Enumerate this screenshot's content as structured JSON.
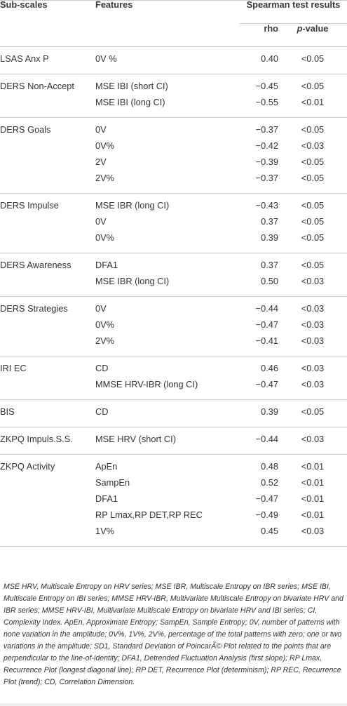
{
  "header": {
    "subscales": "Sub-scales",
    "features": "Features",
    "results": "Spearman test results",
    "rho": "rho",
    "pvalue_italic": "p",
    "pvalue_rest": "-value"
  },
  "groups": [
    {
      "scale": "LSAS Anx P",
      "rows": [
        {
          "feature": "0V %",
          "rho": "0.40",
          "p": "<0.05"
        }
      ]
    },
    {
      "scale": "DERS Non-Accept",
      "rows": [
        {
          "feature": "MSE IBI (short CI)",
          "rho": "−0.45",
          "p": "<0.05"
        },
        {
          "feature": "MSE IBI (long CI)",
          "rho": "−0.55",
          "p": "<0.01"
        }
      ]
    },
    {
      "scale": "DERS Goals",
      "rows": [
        {
          "feature": "0V",
          "rho": "−0.37",
          "p": "<0.05"
        },
        {
          "feature": "0V%",
          "rho": "−0.42",
          "p": "<0.03"
        },
        {
          "feature": "2V",
          "rho": "−0.39",
          "p": "<0.05"
        },
        {
          "feature": "2V%",
          "rho": "−0.37",
          "p": "<0.05"
        }
      ]
    },
    {
      "scale": "DERS Impulse",
      "rows": [
        {
          "feature": "MSE IBR (long CI)",
          "rho": "−0.43",
          "p": "<0.05"
        },
        {
          "feature": "0V",
          "rho": "0.37",
          "p": "<0.05"
        },
        {
          "feature": "0V%",
          "rho": "0.39",
          "p": "<0.05"
        }
      ]
    },
    {
      "scale": "DERS Awareness",
      "rows": [
        {
          "feature": "DFA1",
          "rho": "0.37",
          "p": "<0.05"
        },
        {
          "feature": "MSE IBR (long CI)",
          "rho": "0.50",
          "p": "<0.03"
        }
      ]
    },
    {
      "scale": "DERS Strategies",
      "rows": [
        {
          "feature": "0V",
          "rho": "−0.44",
          "p": "<0.03"
        },
        {
          "feature": "0V%",
          "rho": "−0.47",
          "p": "<0.03"
        },
        {
          "feature": "2V%",
          "rho": "−0.41",
          "p": "<0.03"
        }
      ]
    },
    {
      "scale": "IRI EC",
      "rows": [
        {
          "feature": "CD",
          "rho": "0.46",
          "p": "<0.03"
        },
        {
          "feature": "MMSE HRV-IBR (long CI)",
          "rho": "−0.47",
          "p": "<0.03"
        }
      ]
    },
    {
      "scale": "BIS",
      "rows": [
        {
          "feature": "CD",
          "rho": "0.39",
          "p": "<0.05"
        }
      ]
    },
    {
      "scale": "ZKPQ Impuls.S.S.",
      "rows": [
        {
          "feature": "MSE HRV (short CI)",
          "rho": "−0.44",
          "p": "<0.03"
        }
      ]
    },
    {
      "scale": "ZKPQ Activity",
      "rows": [
        {
          "feature": "ApEn",
          "rho": "0.48",
          "p": "<0.01"
        },
        {
          "feature": "SampEn",
          "rho": "0.52",
          "p": "<0.01"
        },
        {
          "feature": "DFA1",
          "rho": "−0.47",
          "p": "<0.01"
        },
        {
          "feature": "RP Lmax,RP DET,RP REC",
          "rho": "−0.49",
          "p": "<0.01"
        },
        {
          "feature": "1V%",
          "rho": "0.45",
          "p": "<0.03"
        }
      ]
    }
  ],
  "footnote": "MSE HRV, Multiscale Entropy on HRV series; MSE IBR, Multiscale Entropy on IBR series; MSE IBI, Multiscale Entropy on IBI series; MMSE HRV-IBR, Multivariate Multiscale Entropy on bivariate HRV and IBR series; MMSE HRV-IBI, Multivariate Multiscale Entropy on bivariate HRV and IBI series; CI, Complexity Index. ApEn, Approximate Entropy; SampEn, Sample Entropy; 0V, number of patterns with none variation in the amplitude; 0V%, 1V%, 2V%, percentage of the total patterns with zero; one or two variations in the amplitude; SD1, Standard Deviation of PoincarÃ© Plot related to the points that are perpendicular to the line-of-identity; DFA1, Detrended Fluctuation Analysis (first slope); RP Lmax, Recurrence Plot (longest diagonal line); RP DET, Recurrence Plot (determinism); RP REC, Recurrence Plot (trend); CD, Correlation Dimension."
}
